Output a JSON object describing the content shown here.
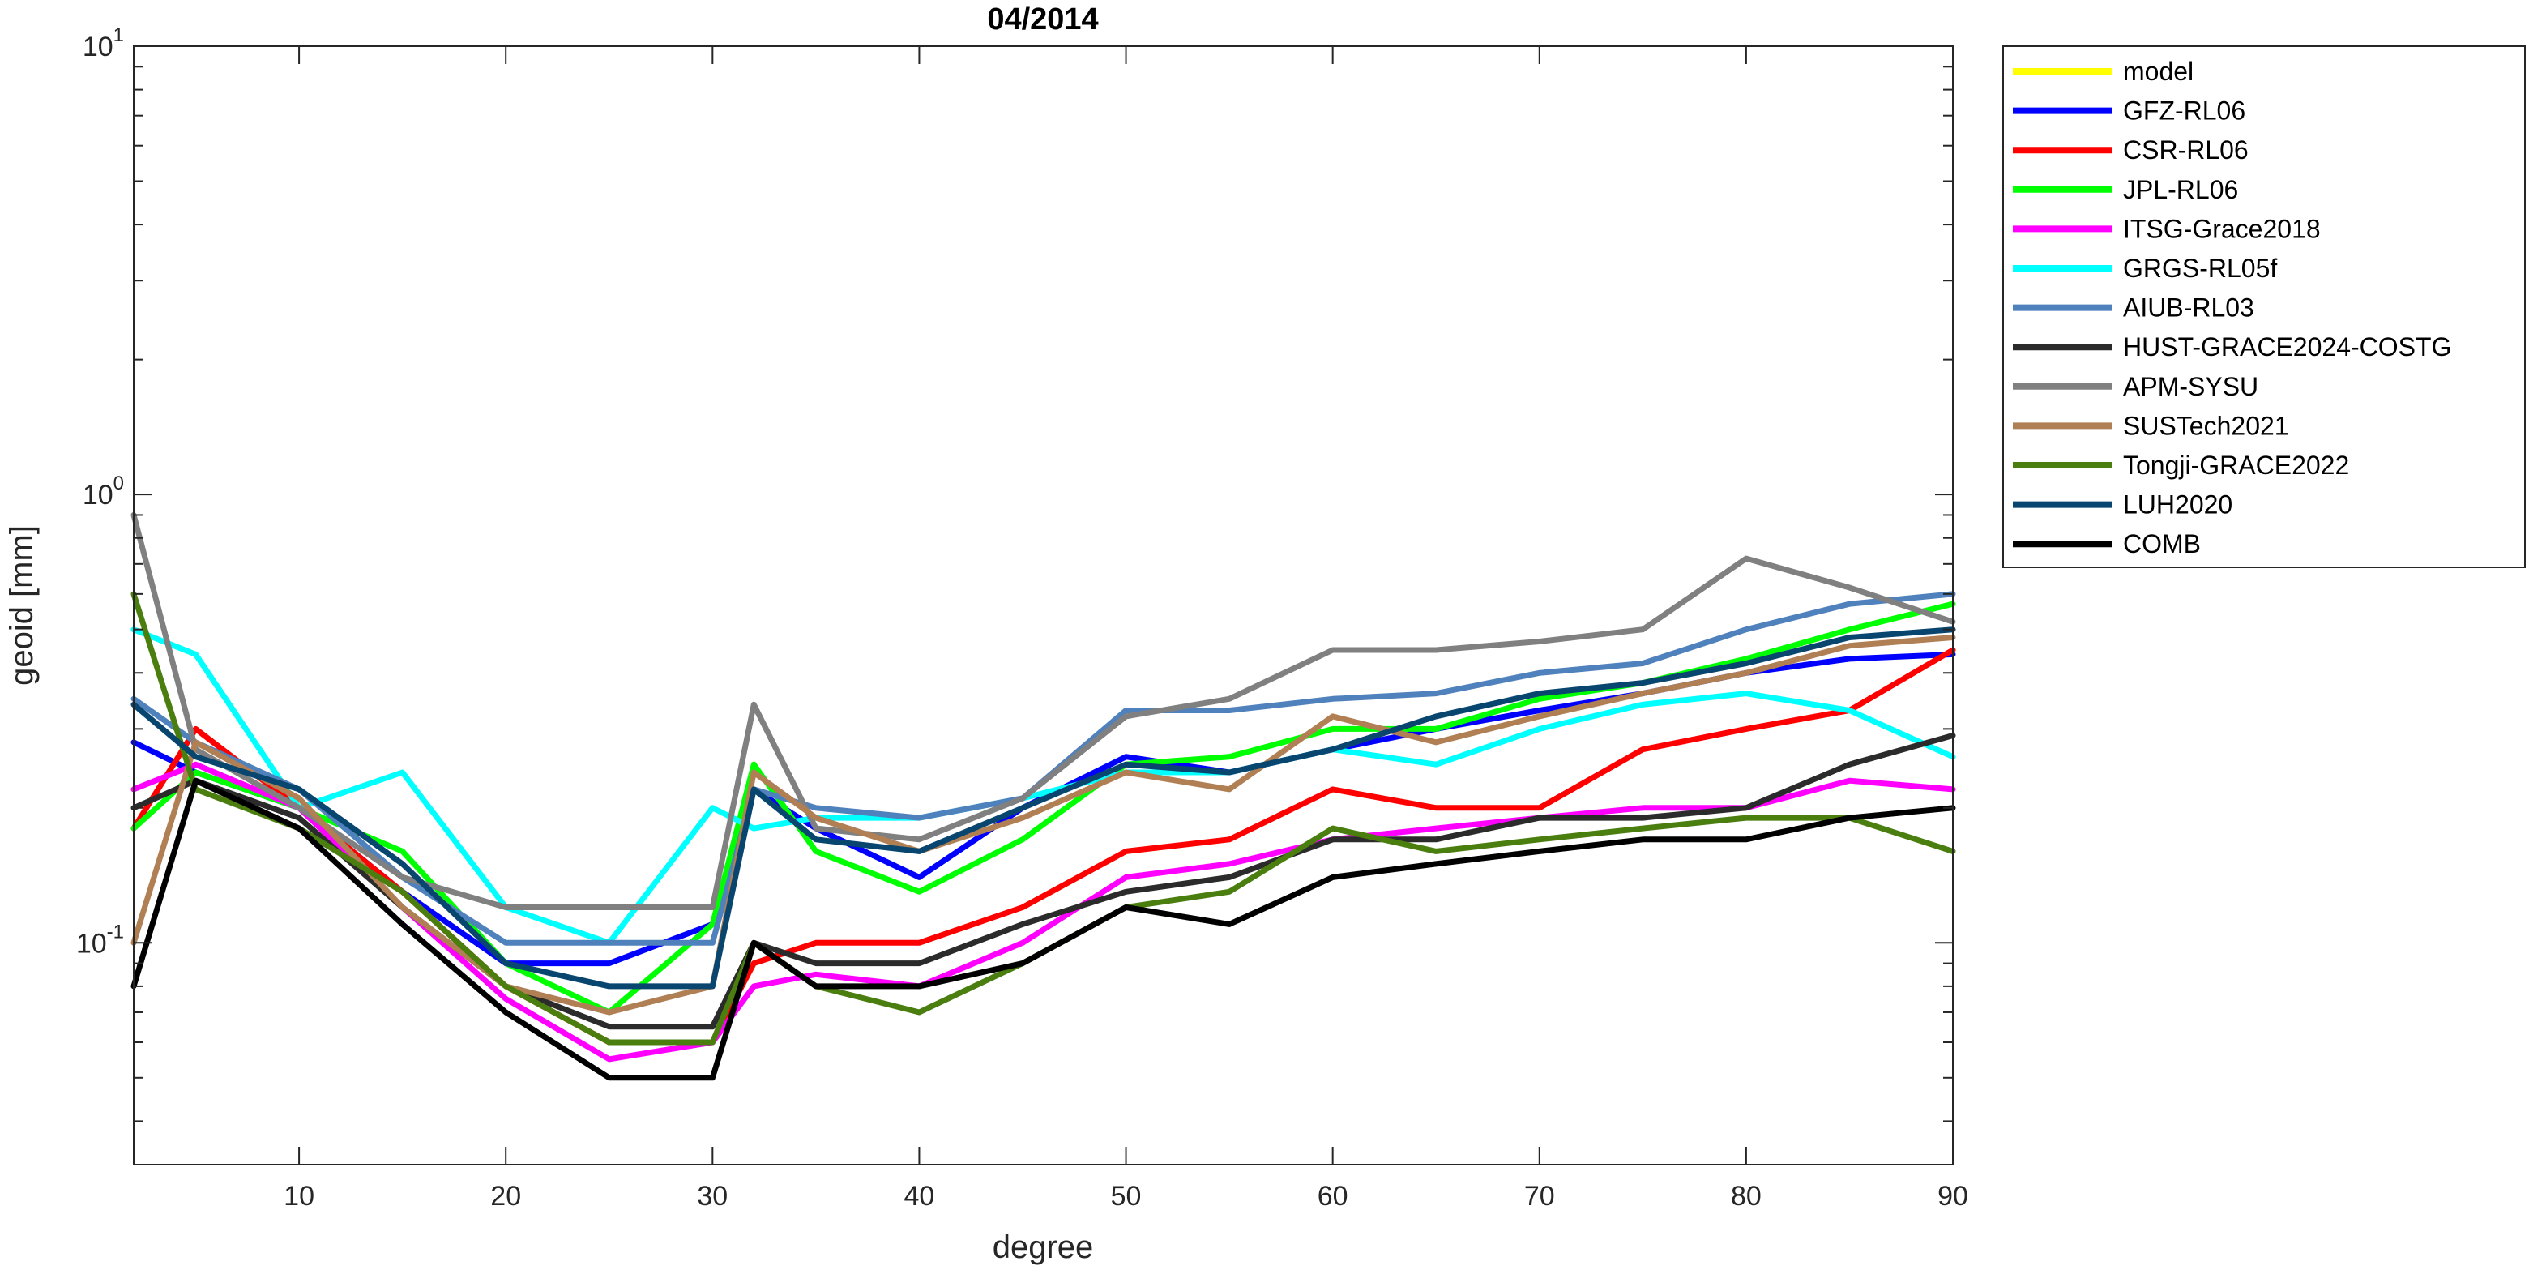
{
  "chart_data": {
    "type": "line",
    "title": "04/2014",
    "xlabel": "degree",
    "ylabel": "geoid [mm]",
    "xlim": [
      2,
      90
    ],
    "ylim": [
      0.032,
      10
    ],
    "yscale": "log",
    "xticks": [
      10,
      20,
      30,
      40,
      50,
      60,
      70,
      80,
      90
    ],
    "yticks": [
      {
        "value": 0.1,
        "base": "10",
        "exp": "-1"
      },
      {
        "value": 1,
        "base": "10",
        "exp": "0"
      },
      {
        "value": 10,
        "base": "10",
        "exp": "1"
      }
    ],
    "grid": false,
    "legend_position": "outside-right",
    "x": [
      2,
      5,
      10,
      15,
      20,
      25,
      30,
      32,
      35,
      40,
      45,
      50,
      55,
      60,
      65,
      70,
      75,
      80,
      85,
      90
    ],
    "series": [
      {
        "name": "model",
        "color": "#ffff00",
        "values": [
          null,
          null,
          null,
          null,
          null,
          null,
          null,
          null,
          null,
          null,
          null,
          null,
          null,
          null,
          null,
          null,
          null,
          null,
          null,
          null
        ]
      },
      {
        "name": "GFZ-RL06",
        "color": "#0000ff",
        "values": [
          0.28,
          0.24,
          0.2,
          0.13,
          0.09,
          0.09,
          0.11,
          0.22,
          0.18,
          0.14,
          0.2,
          0.26,
          0.24,
          0.27,
          0.3,
          0.33,
          0.36,
          0.4,
          0.43,
          0.44
        ]
      },
      {
        "name": "CSR-RL06",
        "color": "#ff0000",
        "values": [
          0.18,
          0.3,
          0.2,
          0.13,
          0.08,
          0.06,
          0.06,
          0.09,
          0.1,
          0.1,
          0.12,
          0.16,
          0.17,
          0.22,
          0.2,
          0.2,
          0.27,
          0.3,
          0.33,
          0.45
        ]
      },
      {
        "name": "JPL-RL06",
        "color": "#00ff00",
        "values": [
          0.18,
          0.24,
          0.2,
          0.16,
          0.09,
          0.07,
          0.11,
          0.25,
          0.16,
          0.13,
          0.17,
          0.25,
          0.26,
          0.3,
          0.3,
          0.35,
          0.38,
          0.43,
          0.5,
          0.57
        ]
      },
      {
        "name": "ITSG-Grace2018",
        "color": "#ff00ff",
        "values": [
          0.22,
          0.25,
          0.2,
          0.12,
          0.075,
          0.055,
          0.06,
          0.08,
          0.085,
          0.08,
          0.1,
          0.14,
          0.15,
          0.17,
          0.18,
          0.19,
          0.2,
          0.2,
          0.23,
          0.22
        ]
      },
      {
        "name": "GRGS-RL05f",
        "color": "#00ffff",
        "values": [
          0.5,
          0.44,
          0.2,
          0.24,
          0.12,
          0.1,
          0.2,
          0.18,
          0.19,
          0.19,
          0.21,
          0.24,
          0.24,
          0.27,
          0.25,
          0.3,
          0.34,
          0.36,
          0.33,
          0.26
        ]
      },
      {
        "name": "AIUB-RL03",
        "color": "#4f81bd",
        "values": [
          0.35,
          0.28,
          0.22,
          0.14,
          0.1,
          0.1,
          0.1,
          0.22,
          0.2,
          0.19,
          0.21,
          0.33,
          0.33,
          0.35,
          0.36,
          0.4,
          0.42,
          0.5,
          0.57,
          0.6
        ]
      },
      {
        "name": "HUST-GRACE2024-COSTG",
        "color": "#2b2b2b",
        "values": [
          0.2,
          0.23,
          0.19,
          0.12,
          0.08,
          0.065,
          0.065,
          0.1,
          0.09,
          0.09,
          0.11,
          0.13,
          0.14,
          0.17,
          0.17,
          0.19,
          0.19,
          0.2,
          0.25,
          0.29
        ]
      },
      {
        "name": "APM-SYSU",
        "color": "#808080",
        "values": [
          0.9,
          0.27,
          0.2,
          0.14,
          0.12,
          0.12,
          0.12,
          0.34,
          0.18,
          0.17,
          0.21,
          0.32,
          0.35,
          0.45,
          0.45,
          0.47,
          0.5,
          0.72,
          0.62,
          0.52
        ]
      },
      {
        "name": "SUSTech2021",
        "color": "#b07f54",
        "values": [
          0.1,
          0.28,
          0.21,
          0.12,
          0.08,
          0.07,
          0.08,
          0.24,
          0.19,
          0.16,
          0.19,
          0.24,
          0.22,
          0.32,
          0.28,
          0.32,
          0.36,
          0.4,
          0.46,
          0.48
        ]
      },
      {
        "name": "Tongji-GRACE2022",
        "color": "#4a7e0f",
        "values": [
          0.6,
          0.22,
          0.18,
          0.13,
          0.08,
          0.06,
          0.06,
          0.1,
          0.08,
          0.07,
          0.09,
          0.12,
          0.13,
          0.18,
          0.16,
          0.17,
          0.18,
          0.19,
          0.19,
          0.16
        ]
      },
      {
        "name": "LUH2020",
        "color": "#08466f",
        "values": [
          0.34,
          0.26,
          0.22,
          0.15,
          0.09,
          0.08,
          0.08,
          0.22,
          0.17,
          0.16,
          0.2,
          0.25,
          0.24,
          0.27,
          0.32,
          0.36,
          0.38,
          0.42,
          0.48,
          0.5
        ]
      },
      {
        "name": "COMB",
        "color": "#000000",
        "values": [
          0.08,
          0.23,
          0.18,
          0.11,
          0.07,
          0.05,
          0.05,
          0.1,
          0.08,
          0.08,
          0.09,
          0.12,
          0.11,
          0.14,
          0.15,
          0.16,
          0.17,
          0.17,
          0.19,
          0.2
        ]
      }
    ]
  }
}
